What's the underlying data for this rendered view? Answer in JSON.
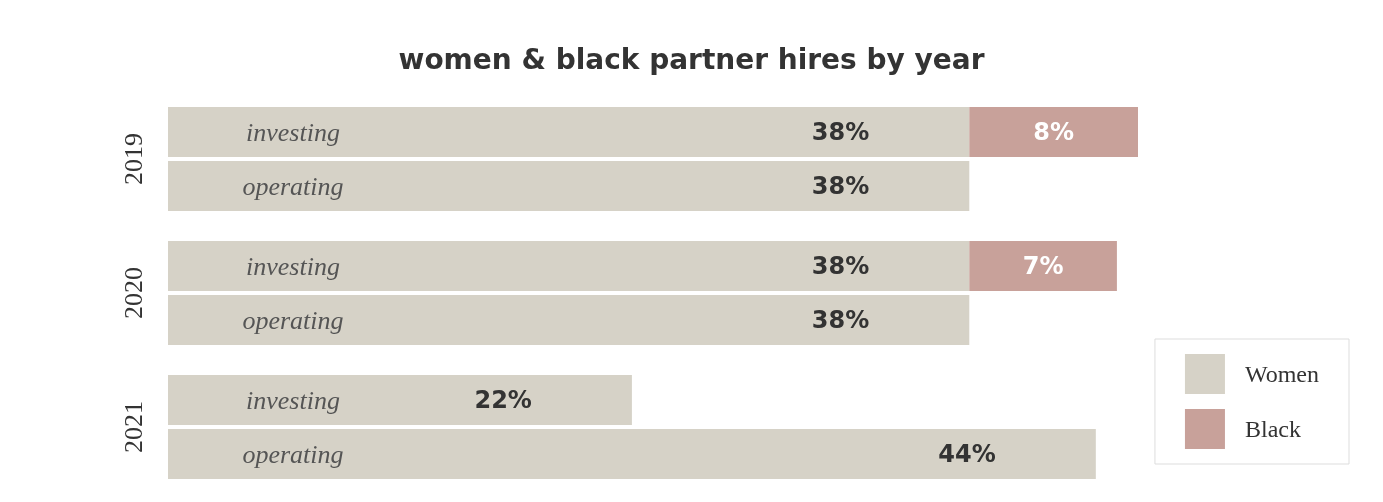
{
  "chart_data": {
    "type": "bar",
    "orientation": "horizontal",
    "stacked": true,
    "title": "women & black partner hires by year",
    "categories": [
      "investing",
      "operating",
      "investing",
      "operating",
      "investing",
      "operating"
    ],
    "annotations": [
      "2019",
      "2020",
      "2021"
    ],
    "series": [
      {
        "name": "Women",
        "color": "#d6d2c7",
        "values": [
          38,
          38,
          38,
          38,
          22,
          44
        ],
        "value_labels": [
          "38%",
          "38%",
          "38%",
          "38%",
          "22%",
          "44%"
        ]
      },
      {
        "name": "Black",
        "color": "#c8a19a",
        "values": [
          8,
          null,
          7,
          null,
          null,
          null
        ],
        "value_labels": [
          "8%",
          null,
          "7%",
          null,
          null,
          null
        ]
      }
    ],
    "legend": "bottom right"
  }
}
